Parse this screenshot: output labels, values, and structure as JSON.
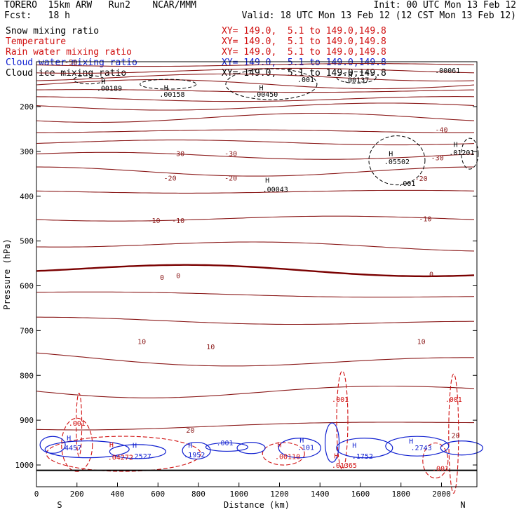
{
  "header": {
    "model": "TORERO  15km ARW   Run2    NCAR/MMM",
    "init": "Init: 00 UTC Mon 13 Feb 12",
    "fcst": "Fcst:   18 h",
    "valid": "Valid: 18 UTC Mon 13 Feb 12 (12 CST Mon 13 Feb 12)"
  },
  "fields": [
    {
      "label": "Snow mixing ratio",
      "xy": "XY= 149.0,  5.1 to 149.0,149.8",
      "color": "#000000"
    },
    {
      "label": "Temperature",
      "xy": "XY= 149.0,  5.1 to 149.0,149.8",
      "color": "#d01010"
    },
    {
      "label": "Rain water mixing ratio",
      "xy": "XY= 149.0,  5.1 to 149.0,149.8",
      "color": "#d01010"
    },
    {
      "label": "Cloud water mixing ratio",
      "xy": "XY= 149.0,  5.1 to 149.0,149.8",
      "color": "#1020d0"
    },
    {
      "label": "Cloud ice mixing ratio",
      "xy": "XY= 149.0,  5.1 to 149.0,149.8",
      "color": "#000000"
    }
  ],
  "chart_data": {
    "type": "cross-section",
    "xlabel": "Distance (km)",
    "ylabel": "Pressure (hPa)",
    "x_ticks": [
      0,
      200,
      400,
      600,
      800,
      1000,
      1200,
      1400,
      1600,
      1800,
      2000
    ],
    "y_ticks": [
      200,
      300,
      400,
      500,
      600,
      700,
      800,
      900,
      1000
    ],
    "xlim": [
      0,
      2175
    ],
    "ylim": [
      1045,
      100
    ],
    "x_endpoints": {
      "left": "S",
      "right": "N"
    },
    "temperature_labels": [
      {
        "text": "-30",
        "x": 700,
        "p": 310
      },
      {
        "text": "-30",
        "x": 960,
        "p": 310
      },
      {
        "text": "-30",
        "x": 1980,
        "p": 320
      },
      {
        "text": "-20",
        "x": 660,
        "p": 365
      },
      {
        "text": "-20",
        "x": 960,
        "p": 365
      },
      {
        "text": "-20",
        "x": 1900,
        "p": 366
      },
      {
        "text": "-10",
        "x": 580,
        "p": 460
      },
      {
        "text": "-10",
        "x": 700,
        "p": 460
      },
      {
        "text": "-10",
        "x": 1920,
        "p": 456
      },
      {
        "text": "-40",
        "x": 2000,
        "p": 257
      },
      {
        "text": "-50",
        "x": 170,
        "p": 106
      },
      {
        "text": "0",
        "x": 620,
        "p": 587
      },
      {
        "text": "0",
        "x": 700,
        "p": 583
      },
      {
        "text": "0",
        "x": 1950,
        "p": 580
      },
      {
        "text": "10",
        "x": 520,
        "p": 730
      },
      {
        "text": "10",
        "x": 860,
        "p": 742
      },
      {
        "text": "10",
        "x": 1900,
        "p": 730
      },
      {
        "text": "20",
        "x": 760,
        "p": 928
      },
      {
        "text": "20",
        "x": 2070,
        "p": 940
      }
    ],
    "snow_labels": [
      {
        "text": ".00189",
        "x": 360,
        "p": 165
      },
      {
        "text": ".00158",
        "x": 670,
        "p": 178
      },
      {
        "text": ".00450",
        "x": 1130,
        "p": 178
      },
      {
        "text": ".001",
        "x": 1330,
        "p": 145
      },
      {
        "text": ".00137",
        "x": 1580,
        "p": 146
      },
      {
        "text": ".00061",
        "x": 2030,
        "p": 125
      },
      {
        "text": ".00043",
        "x": 1180,
        "p": 390
      },
      {
        "text": ".05502",
        "x": 1780,
        "p": 328
      },
      {
        "text": ".001",
        "x": 1830,
        "p": 377
      },
      {
        "text": ".01201",
        "x": 2100,
        "p": 308
      }
    ],
    "rain_labels": [
      {
        "text": ".001",
        "x": 200,
        "p": 912
      },
      {
        "text": ".001",
        "x": 1500,
        "p": 859
      },
      {
        "text": ".001",
        "x": 2060,
        "p": 859
      },
      {
        "text": ".04272",
        "x": 415,
        "p": 988
      },
      {
        "text": ".00110",
        "x": 1240,
        "p": 987
      },
      {
        "text": ".01365",
        "x": 1520,
        "p": 1006
      },
      {
        "text": ".001",
        "x": 1995,
        "p": 1013
      }
    ],
    "cloud_water_labels": [
      {
        "text": ".001",
        "x": 930,
        "p": 956
      },
      {
        "text": ".1952",
        "x": 780,
        "p": 983
      },
      {
        "text": ".2527",
        "x": 515,
        "p": 986
      },
      {
        "text": ".101",
        "x": 1330,
        "p": 966
      },
      {
        "text": ".1752",
        "x": 1610,
        "p": 986
      },
      {
        "text": ".2743",
        "x": 1900,
        "p": 967
      },
      {
        "text": ".4457",
        "x": 170,
        "p": 967
      }
    ],
    "highs": [
      {
        "color": "snow",
        "x": 330,
        "p": 150
      },
      {
        "color": "snow",
        "x": 640,
        "p": 163
      },
      {
        "color": "snow",
        "x": 1110,
        "p": 163
      },
      {
        "color": "snow",
        "x": 1140,
        "p": 370
      },
      {
        "color": "snow",
        "x": 1750,
        "p": 310
      },
      {
        "color": "snow",
        "x": 2070,
        "p": 290
      },
      {
        "color": "snow",
        "x": 1550,
        "p": 134
      },
      {
        "color": "rain",
        "x": 370,
        "p": 960
      },
      {
        "color": "rain",
        "x": 1200,
        "p": 960
      },
      {
        "color": "rain",
        "x": 1480,
        "p": 985
      },
      {
        "color": "cloud",
        "x": 160,
        "p": 945
      },
      {
        "color": "cloud",
        "x": 485,
        "p": 962
      },
      {
        "color": "cloud",
        "x": 760,
        "p": 962
      },
      {
        "color": "cloud",
        "x": 1310,
        "p": 950
      },
      {
        "color": "cloud",
        "x": 1570,
        "p": 962
      },
      {
        "color": "cloud",
        "x": 1850,
        "p": 952
      }
    ],
    "isotherms_pressure_at_left": [
      107,
      120,
      135,
      150,
      165,
      183,
      200,
      225,
      255,
      280,
      310,
      345,
      390,
      450,
      510,
      565,
      620,
      680,
      760,
      830,
      910
    ]
  },
  "colors": {
    "temperature": "#8b1a1a",
    "temp_zero": "#7a0000",
    "rain": "#d01010",
    "cloud_water": "#1020d0",
    "snow": "#000000"
  }
}
